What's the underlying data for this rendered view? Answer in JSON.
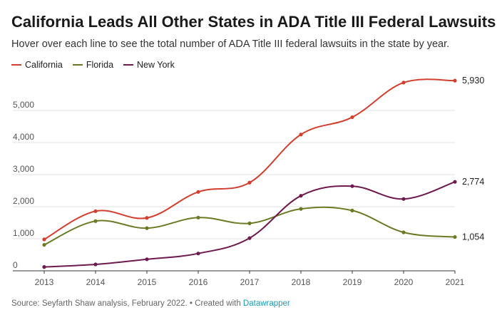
{
  "chart_data": {
    "type": "line",
    "title": "California Leads All Other States in ADA Title III Federal Lawsuits",
    "subtitle": "Hover over each line to see the total number of ADA Title III federal lawsuits in the state by year.",
    "x": [
      2013,
      2014,
      2015,
      2016,
      2017,
      2018,
      2019,
      2020,
      2021
    ],
    "series": [
      {
        "name": "California",
        "color": "#d33f2e",
        "values": [
          980,
          1860,
          1650,
          2460,
          2750,
          4250,
          4790,
          5870,
          5930
        ],
        "end_label": "5,930"
      },
      {
        "name": "Florida",
        "color": "#6b7a23",
        "values": [
          810,
          1550,
          1330,
          1660,
          1480,
          1930,
          1880,
          1200,
          1054
        ],
        "end_label": "1,054"
      },
      {
        "name": "New York",
        "color": "#6e1a4f",
        "values": [
          120,
          200,
          360,
          540,
          1020,
          2340,
          2640,
          2240,
          2774
        ],
        "end_label": "2,774"
      }
    ],
    "y_ticks": [
      "0",
      "1,000",
      "2,000",
      "3,000",
      "4,000",
      "5,000"
    ],
    "y_tick_values": [
      0,
      1000,
      2000,
      3000,
      4000,
      5000
    ],
    "x_tick_labels": [
      "2013",
      "2014",
      "2015",
      "2016",
      "2017",
      "2018",
      "2019",
      "2020",
      "2021"
    ],
    "ylim": [
      0,
      6000
    ],
    "grid": true,
    "legend": "top-left"
  },
  "footer": {
    "source": "Source: Seyfarth Shaw analysis, February 2022. • Created with ",
    "link": "Datawrapper"
  }
}
